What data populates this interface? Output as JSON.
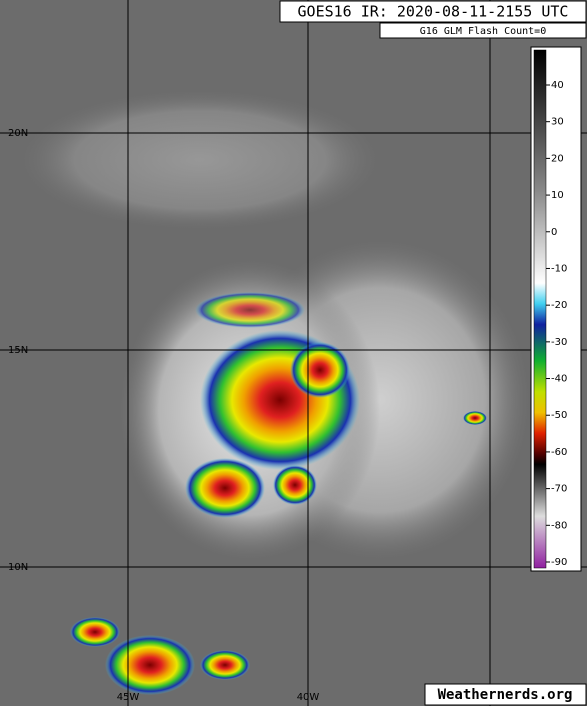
{
  "header": {
    "title": "GOES16 IR: 2020-08-11-2155 UTC",
    "subtitle": "G16 GLM Flash Count=0"
  },
  "map": {
    "latitude_labels": [
      "20N",
      "15N",
      "10N"
    ],
    "longitude_labels": [
      "45W",
      "40W"
    ]
  },
  "colorbar": {
    "ticks": [
      40,
      30,
      20,
      10,
      0,
      -10,
      -20,
      -30,
      -40,
      -50,
      -60,
      -70,
      -80,
      -90
    ]
  },
  "footer": {
    "watermark": "Weathernerds.org"
  }
}
